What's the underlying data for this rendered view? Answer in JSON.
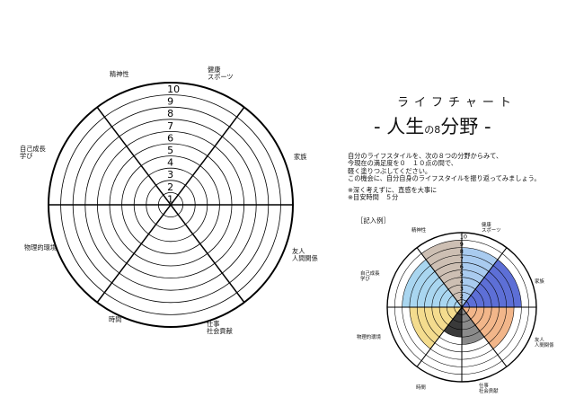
{
  "header": {
    "subtitle": "ライフチャート",
    "title_prefix": "-",
    "title_main": "人生",
    "title_no": "の",
    "title_num": "8",
    "title_field": "分野",
    "title_suffix": "-"
  },
  "description": {
    "lines": [
      "自分のライフスタイルを、次の８つの分野からみて、",
      "今現在の満足度を０　１０点の間で、",
      "軽く塗りつぶしてください。",
      "この機会に、自分自身のライフスタイルを振り返ってみましょう。"
    ],
    "notes": [
      "※深く考えずに、直感を大事に",
      "※目安時間　５分"
    ]
  },
  "example_label": "［記入例］",
  "chart": {
    "scale_labels": [
      "1",
      "2",
      "3",
      "4",
      "5",
      "6",
      "7",
      "8",
      "9",
      "10"
    ],
    "categories": [
      {
        "line1": "精神性",
        "line2": ""
      },
      {
        "line1": "健康",
        "line2": "スポーツ"
      },
      {
        "line1": "家族",
        "line2": ""
      },
      {
        "line1": "友人",
        "line2": "人間関係"
      },
      {
        "line1": "仕事",
        "line2": "社会貢献"
      },
      {
        "line1": "時間",
        "line2": ""
      },
      {
        "line1": "物理的環境",
        "line2": ""
      },
      {
        "line1": "自己成長",
        "line2": "学び"
      }
    ]
  },
  "chart_data": {
    "type": "radial",
    "scale_max": 10,
    "example_values": [
      {
        "category": "精神性",
        "value": 9,
        "color": "#cdbfb3"
      },
      {
        "category": "健康 スポーツ",
        "value": 8,
        "color": "#a9cbef"
      },
      {
        "category": "家族",
        "value": 8,
        "color": "#5d6fd6"
      },
      {
        "category": "友人 人間関係",
        "value": 7,
        "color": "#f2b68a"
      },
      {
        "category": "仕事 社会貢献",
        "value": 5,
        "color": "#8a8a8a"
      },
      {
        "category": "時間",
        "value": 4,
        "color": "#3a3a3a"
      },
      {
        "category": "物理的環境",
        "value": 7,
        "color": "#f4dc8e"
      },
      {
        "category": "自己成長 学び",
        "value": 8,
        "color": "#a9d6f0"
      }
    ]
  }
}
